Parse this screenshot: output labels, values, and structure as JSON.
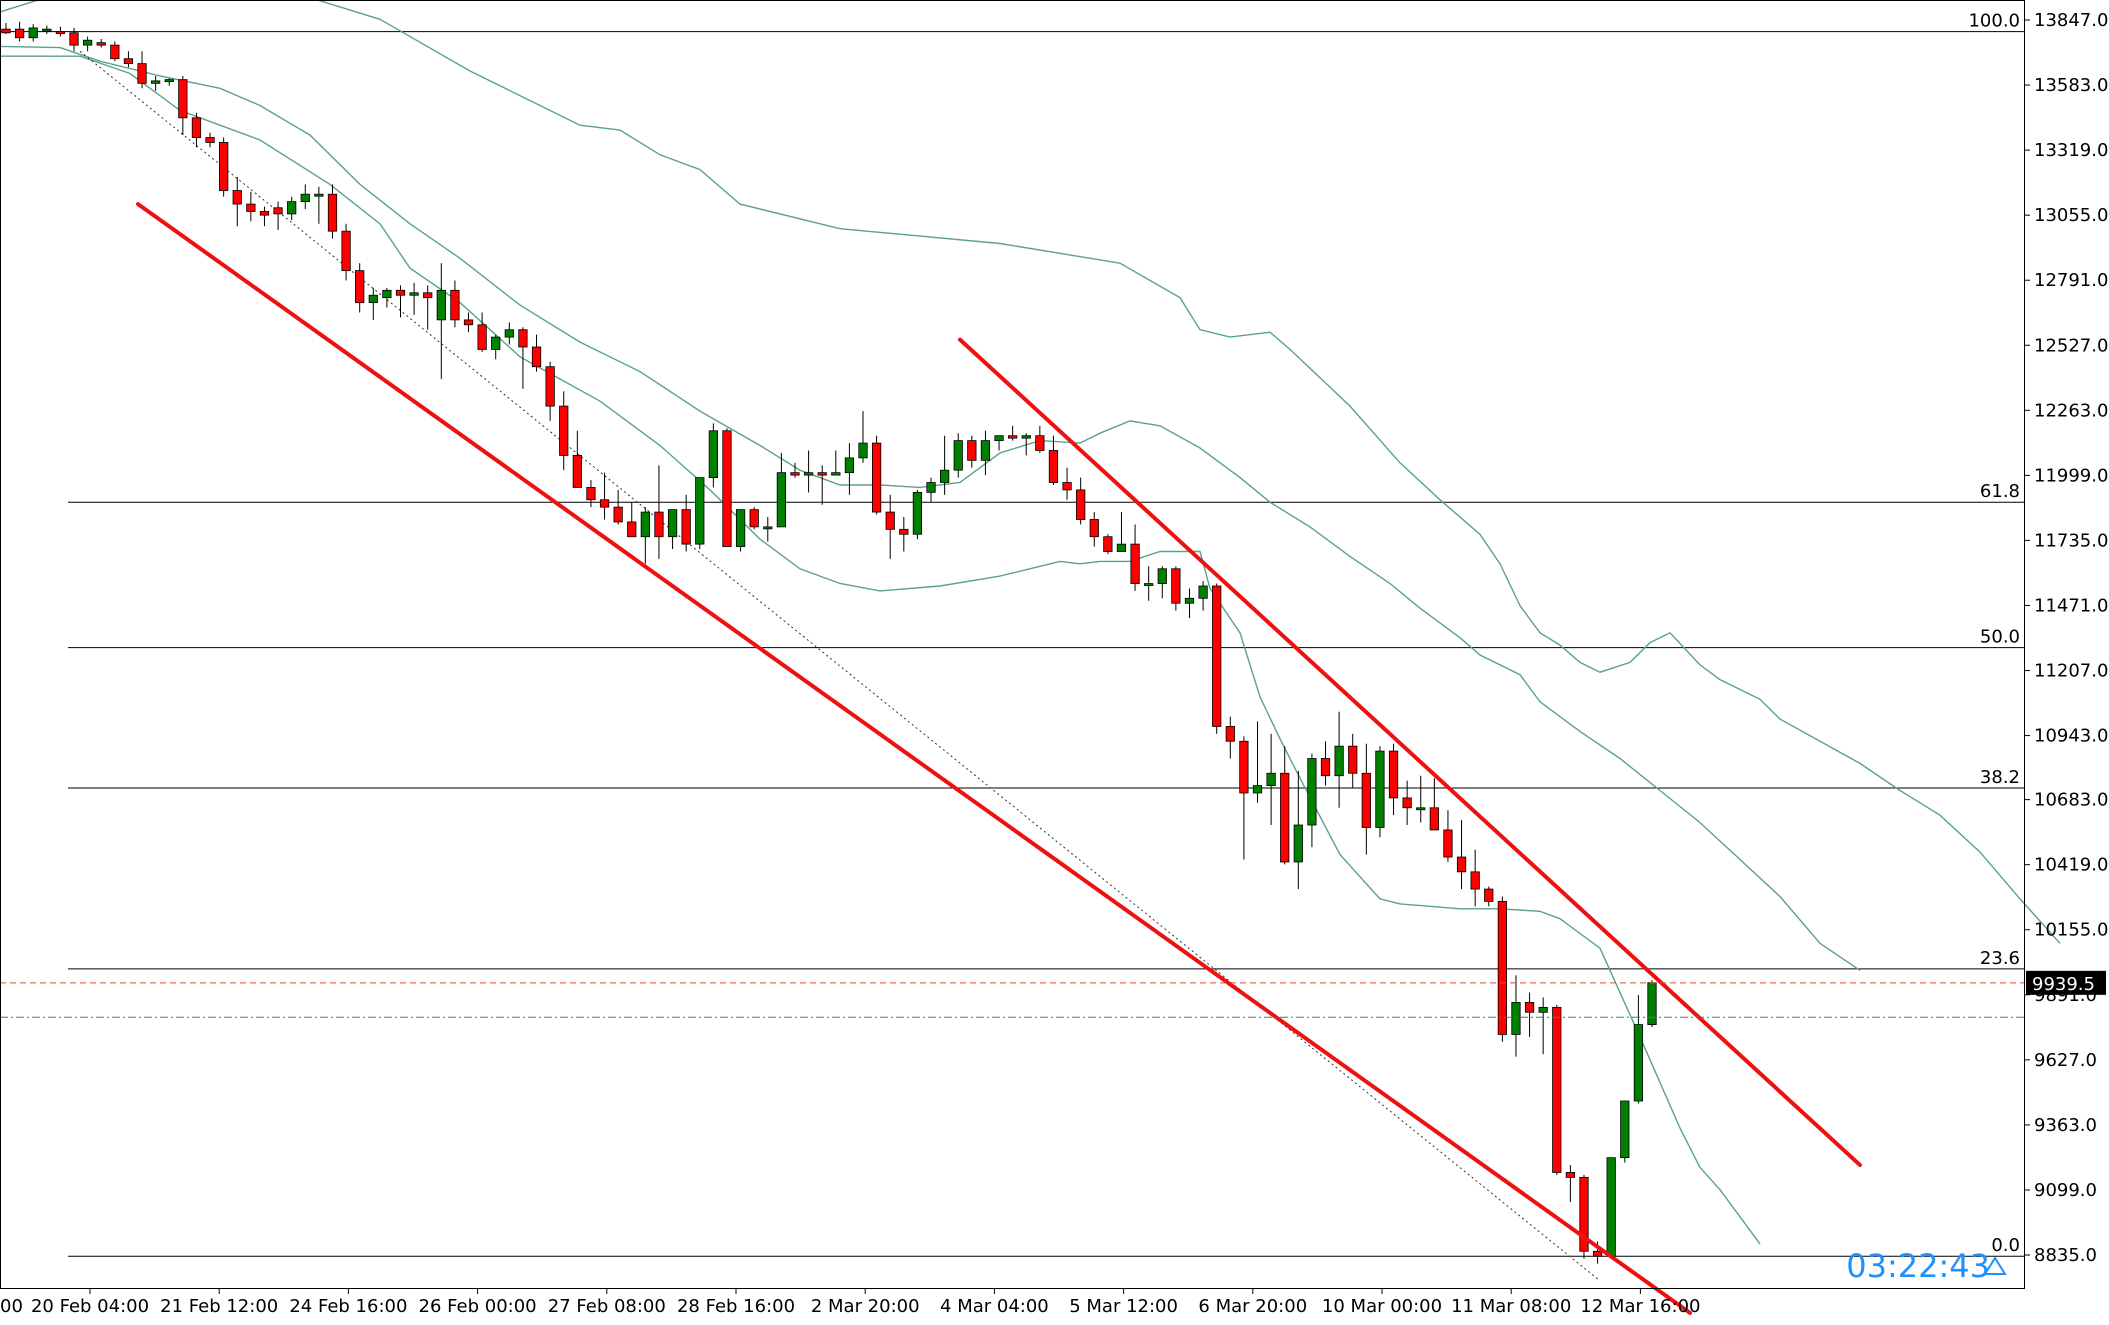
{
  "chart_data": {
    "type": "candlestick",
    "title": "",
    "xlabel": "",
    "ylabel": "",
    "ylim": [
      8700,
      13930
    ],
    "y_ticks": [
      "13847.0",
      "13583.0",
      "13319.0",
      "13055.0",
      "12791.0",
      "12527.0",
      "12263.0",
      "11999.0",
      "11735.0",
      "11471.0",
      "11207.0",
      "10943.0",
      "10683.0",
      "10419.0",
      "10155.0",
      "9891.0",
      "9627.0",
      "9363.0",
      "9099.0",
      "8835.0"
    ],
    "x_ticks": [
      "20 Feb 04:00",
      "21 Feb 12:00",
      "24 Feb 16:00",
      "26 Feb 00:00",
      "27 Feb 08:00",
      "28 Feb 16:00",
      "2 Mar 20:00",
      "4 Mar 04:00",
      "5 Mar 12:00",
      "6 Mar 20:00",
      "10 Mar 00:00",
      "11 Mar 08:00",
      "12 Mar 16:00"
    ],
    "x_edge_label": "00",
    "current_price": "9939.5",
    "countdown": "03:22:43",
    "fibonacci": [
      {
        "level": "100.0",
        "price": 13800
      },
      {
        "level": "61.8",
        "price": 11890
      },
      {
        "level": "50.0",
        "price": 11300
      },
      {
        "level": "38.2",
        "price": 10730
      },
      {
        "level": "23.6",
        "price": 9996
      },
      {
        "level": "0.0",
        "price": 8830
      }
    ],
    "candles": [
      [
        13810,
        13835,
        13790,
        13795
      ],
      [
        13810,
        13840,
        13760,
        13775
      ],
      [
        13775,
        13830,
        13760,
        13815
      ],
      [
        13805,
        13825,
        13790,
        13810
      ],
      [
        13800,
        13820,
        13780,
        13795
      ],
      [
        13795,
        13815,
        13720,
        13745
      ],
      [
        13745,
        13780,
        13720,
        13765
      ],
      [
        13755,
        13770,
        13735,
        13745
      ],
      [
        13745,
        13760,
        13680,
        13690
      ],
      [
        13690,
        13720,
        13655,
        13670
      ],
      [
        13670,
        13720,
        13570,
        13590
      ],
      [
        13590,
        13620,
        13560,
        13600
      ],
      [
        13600,
        13610,
        13580,
        13605
      ],
      [
        13605,
        13620,
        13380,
        13450
      ],
      [
        13450,
        13470,
        13330,
        13370
      ],
      [
        13370,
        13390,
        13330,
        13350
      ],
      [
        13350,
        13370,
        13130,
        13155
      ],
      [
        13155,
        13210,
        13010,
        13100
      ],
      [
        13100,
        13150,
        13030,
        13070
      ],
      [
        13070,
        13090,
        13010,
        13055
      ],
      [
        13085,
        13110,
        12995,
        13060
      ],
      [
        13060,
        13130,
        13035,
        13110
      ],
      [
        13110,
        13180,
        13080,
        13140
      ],
      [
        13140,
        13170,
        13020,
        13140
      ],
      [
        13140,
        13180,
        12960,
        12990
      ],
      [
        12990,
        13020,
        12790,
        12830
      ],
      [
        12830,
        12860,
        12660,
        12700
      ],
      [
        12700,
        12760,
        12630,
        12730
      ],
      [
        12720,
        12760,
        12680,
        12750
      ],
      [
        12750,
        12770,
        12640,
        12730
      ],
      [
        12730,
        12780,
        12650,
        12740
      ],
      [
        12740,
        12770,
        12590,
        12720
      ],
      [
        12630,
        12860,
        12390,
        12750
      ],
      [
        12750,
        12790,
        12600,
        12630
      ],
      [
        12630,
        12660,
        12580,
        12610
      ],
      [
        12610,
        12660,
        12500,
        12510
      ],
      [
        12510,
        12570,
        12470,
        12560
      ],
      [
        12560,
        12620,
        12530,
        12590
      ],
      [
        12590,
        12600,
        12350,
        12520
      ],
      [
        12520,
        12570,
        12420,
        12440
      ],
      [
        12440,
        12460,
        12220,
        12280
      ],
      [
        12280,
        12340,
        12020,
        12080
      ],
      [
        12080,
        12180,
        11950,
        11950
      ],
      [
        11950,
        11980,
        11870,
        11900
      ],
      [
        11900,
        12010,
        11820,
        11870
      ],
      [
        11870,
        11940,
        11800,
        11810
      ],
      [
        11810,
        11890,
        11750,
        11750
      ],
      [
        11750,
        11870,
        11640,
        11850
      ],
      [
        11850,
        12040,
        11660,
        11750
      ],
      [
        11750,
        11860,
        11700,
        11860
      ],
      [
        11860,
        11920,
        11690,
        11720
      ],
      [
        11720,
        11990,
        11700,
        11990
      ],
      [
        11990,
        12210,
        11950,
        12180
      ],
      [
        12180,
        12190,
        11710,
        11710
      ],
      [
        11710,
        11860,
        11690,
        11860
      ],
      [
        11860,
        11870,
        11780,
        11790
      ],
      [
        11790,
        11830,
        11730,
        11790
      ],
      [
        11790,
        12090,
        11790,
        12010
      ],
      [
        12010,
        12050,
        11990,
        12000
      ],
      [
        12000,
        12100,
        11930,
        12010
      ],
      [
        12010,
        12040,
        11880,
        12000
      ],
      [
        12000,
        12100,
        12010,
        12010
      ],
      [
        12010,
        12130,
        11920,
        12070
      ],
      [
        12070,
        12260,
        12050,
        12130
      ],
      [
        12130,
        12160,
        11840,
        11850
      ],
      [
        11850,
        11920,
        11660,
        11780
      ],
      [
        11780,
        11830,
        11690,
        11760
      ],
      [
        11760,
        11940,
        11740,
        11930
      ],
      [
        11930,
        11990,
        11890,
        11970
      ],
      [
        11970,
        12160,
        11920,
        12020
      ],
      [
        12020,
        12170,
        11990,
        12140
      ],
      [
        12140,
        12160,
        12030,
        12060
      ],
      [
        12060,
        12180,
        12000,
        12140
      ],
      [
        12140,
        12160,
        12100,
        12160
      ],
      [
        12160,
        12200,
        12140,
        12150
      ],
      [
        12150,
        12170,
        12080,
        12160
      ],
      [
        12160,
        12200,
        12090,
        12100
      ],
      [
        12100,
        12160,
        11960,
        11970
      ],
      [
        11970,
        12030,
        11900,
        11940
      ],
      [
        11940,
        11990,
        11800,
        11820
      ],
      [
        11820,
        11850,
        11710,
        11750
      ],
      [
        11750,
        11760,
        11680,
        11690
      ],
      [
        11690,
        11850,
        11690,
        11720
      ],
      [
        11720,
        11800,
        11530,
        11560
      ],
      [
        11560,
        11630,
        11490,
        11560
      ],
      [
        11560,
        11630,
        11500,
        11620
      ],
      [
        11620,
        11630,
        11450,
        11480
      ],
      [
        11480,
        11540,
        11420,
        11500
      ],
      [
        11500,
        11570,
        11450,
        11550
      ],
      [
        11550,
        11560,
        10950,
        10980
      ],
      [
        10980,
        11020,
        10850,
        10920
      ],
      [
        10920,
        10940,
        10440,
        10710
      ],
      [
        10710,
        11000,
        10670,
        10740
      ],
      [
        10740,
        10950,
        10580,
        10790
      ],
      [
        10790,
        10900,
        10420,
        10430
      ],
      [
        10430,
        10800,
        10320,
        10580
      ],
      [
        10580,
        10870,
        10490,
        10850
      ],
      [
        10850,
        10920,
        10740,
        10780
      ],
      [
        10780,
        11040,
        10650,
        10900
      ],
      [
        10900,
        10950,
        10730,
        10790
      ],
      [
        10790,
        10910,
        10460,
        10570
      ],
      [
        10570,
        10900,
        10530,
        10880
      ],
      [
        10880,
        10910,
        10620,
        10690
      ],
      [
        10690,
        10760,
        10580,
        10650
      ],
      [
        10650,
        10780,
        10590,
        10650
      ],
      [
        10650,
        10770,
        10600,
        10560
      ],
      [
        10560,
        10640,
        10430,
        10450
      ],
      [
        10450,
        10600,
        10320,
        10390
      ],
      [
        10390,
        10480,
        10250,
        10320
      ],
      [
        10320,
        10330,
        10250,
        10270
      ],
      [
        10270,
        10290,
        9700,
        9730
      ],
      [
        9730,
        9970,
        9640,
        9860
      ],
      [
        9860,
        9900,
        9720,
        9820
      ],
      [
        9820,
        9880,
        9650,
        9840
      ],
      [
        9840,
        9850,
        9160,
        9170
      ],
      [
        9170,
        9200,
        9050,
        9150
      ],
      [
        9150,
        9160,
        8820,
        8850
      ],
      [
        8850,
        8890,
        8800,
        8830
      ],
      [
        8830,
        9230,
        8820,
        9230
      ],
      [
        9230,
        9460,
        9210,
        9460
      ],
      [
        9460,
        9890,
        9450,
        9770
      ],
      [
        9770,
        9950,
        9760,
        9940
      ]
    ],
    "bollinger": {
      "upper": [
        [
          0,
          13880
        ],
        [
          40,
          13930
        ],
        [
          160,
          13960
        ],
        [
          220,
          13960
        ],
        [
          300,
          13950
        ],
        [
          380,
          13850
        ],
        [
          470,
          13640
        ],
        [
          580,
          13420
        ],
        [
          620,
          13400
        ],
        [
          660,
          13300
        ],
        [
          700,
          13240
        ],
        [
          740,
          13100
        ],
        [
          840,
          13000
        ],
        [
          1000,
          12940
        ],
        [
          1120,
          12860
        ],
        [
          1180,
          12720
        ],
        [
          1200,
          12590
        ],
        [
          1230,
          12560
        ],
        [
          1270,
          12580
        ],
        [
          1290,
          12510
        ],
        [
          1350,
          12280
        ],
        [
          1400,
          12050
        ],
        [
          1440,
          11900
        ],
        [
          1480,
          11760
        ],
        [
          1500,
          11640
        ],
        [
          1520,
          11470
        ],
        [
          1540,
          11360
        ],
        [
          1560,
          11310
        ],
        [
          1580,
          11240
        ],
        [
          1600,
          11200
        ],
        [
          1630,
          11240
        ],
        [
          1650,
          11320
        ],
        [
          1670,
          11360
        ],
        [
          1700,
          11230
        ],
        [
          1720,
          11170
        ],
        [
          1760,
          11090
        ],
        [
          1780,
          11010
        ],
        [
          1820,
          10920
        ],
        [
          1860,
          10830
        ],
        [
          1900,
          10720
        ],
        [
          1940,
          10620
        ],
        [
          1980,
          10470
        ],
        [
          2020,
          10280
        ],
        [
          2060,
          10100
        ]
      ],
      "middle": [
        [
          0,
          13740
        ],
        [
          60,
          13735
        ],
        [
          100,
          13680
        ],
        [
          160,
          13620
        ],
        [
          220,
          13570
        ],
        [
          260,
          13500
        ],
        [
          310,
          13380
        ],
        [
          360,
          13180
        ],
        [
          410,
          13020
        ],
        [
          460,
          12880
        ],
        [
          520,
          12690
        ],
        [
          580,
          12540
        ],
        [
          640,
          12420
        ],
        [
          700,
          12260
        ],
        [
          760,
          12120
        ],
        [
          800,
          12020
        ],
        [
          840,
          11960
        ],
        [
          880,
          11960
        ],
        [
          920,
          11950
        ],
        [
          960,
          11970
        ],
        [
          1000,
          12090
        ],
        [
          1040,
          12140
        ],
        [
          1080,
          12130
        ],
        [
          1100,
          12170
        ],
        [
          1130,
          12220
        ],
        [
          1160,
          12200
        ],
        [
          1200,
          12110
        ],
        [
          1240,
          11990
        ],
        [
          1270,
          11890
        ],
        [
          1310,
          11790
        ],
        [
          1350,
          11670
        ],
        [
          1390,
          11560
        ],
        [
          1420,
          11460
        ],
        [
          1460,
          11340
        ],
        [
          1480,
          11270
        ],
        [
          1520,
          11190
        ],
        [
          1540,
          11080
        ],
        [
          1580,
          10960
        ],
        [
          1620,
          10850
        ],
        [
          1660,
          10720
        ],
        [
          1700,
          10590
        ],
        [
          1740,
          10440
        ],
        [
          1780,
          10290
        ],
        [
          1820,
          10100
        ],
        [
          1860,
          9990
        ]
      ],
      "lower": [
        [
          0,
          13700
        ],
        [
          80,
          13700
        ],
        [
          130,
          13630
        ],
        [
          180,
          13480
        ],
        [
          260,
          13360
        ],
        [
          330,
          13180
        ],
        [
          380,
          13020
        ],
        [
          410,
          12840
        ],
        [
          460,
          12700
        ],
        [
          520,
          12480
        ],
        [
          600,
          12300
        ],
        [
          660,
          12120
        ],
        [
          710,
          11940
        ],
        [
          760,
          11740
        ],
        [
          800,
          11620
        ],
        [
          840,
          11560
        ],
        [
          880,
          11530
        ],
        [
          940,
          11550
        ],
        [
          1000,
          11590
        ],
        [
          1040,
          11630
        ],
        [
          1060,
          11650
        ],
        [
          1080,
          11640
        ],
        [
          1100,
          11650
        ],
        [
          1130,
          11650
        ],
        [
          1160,
          11690
        ],
        [
          1200,
          11690
        ],
        [
          1210,
          11540
        ],
        [
          1240,
          11360
        ],
        [
          1260,
          11100
        ],
        [
          1280,
          10930
        ],
        [
          1300,
          10770
        ],
        [
          1340,
          10460
        ],
        [
          1380,
          10280
        ],
        [
          1400,
          10260
        ],
        [
          1430,
          10250
        ],
        [
          1460,
          10240
        ],
        [
          1500,
          10240
        ],
        [
          1540,
          10230
        ],
        [
          1560,
          10200
        ],
        [
          1600,
          10080
        ],
        [
          1640,
          9720
        ],
        [
          1680,
          9350
        ],
        [
          1700,
          9190
        ],
        [
          1720,
          9100
        ],
        [
          1760,
          8880
        ]
      ]
    },
    "trendlines": [
      {
        "from": [
          138,
          13100
        ],
        "to": [
          1690,
          8600
        ]
      },
      {
        "from": [
          960,
          12550
        ],
        "to": [
          1860,
          9200
        ]
      }
    ],
    "midline": {
      "from": [
        80,
        13720
      ],
      "to": [
        1600,
        8730
      ]
    },
    "colors": {
      "bull": "#008000",
      "bear": "#ff0000",
      "wick": "#000000",
      "trendline": "#ee1111",
      "bands": "#5aa28a",
      "fib": "#000000",
      "bid_line": "#e84a3c",
      "ask_line": "#2e8b57",
      "price_tag_bg": "#000000",
      "price_tag_fg": "#ffffff",
      "timer": "#1e90ff"
    }
  }
}
